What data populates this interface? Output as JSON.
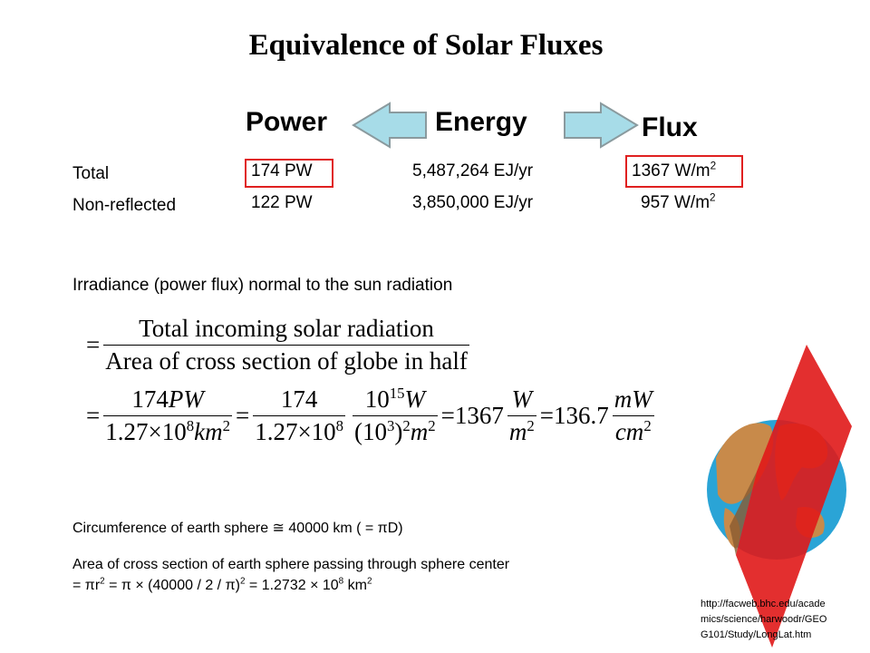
{
  "title": "Equivalence of Solar Fluxes",
  "headers": [
    "Power",
    "Energy",
    "Flux"
  ],
  "rows": [
    {
      "label": "Total",
      "cells": [
        [
          {
            "t": "174 PW"
          }
        ],
        [
          {
            "t": "5,487,264 EJ/yr"
          }
        ],
        [
          {
            "t": "1367 W/m"
          },
          {
            "sup": "2"
          }
        ]
      ]
    },
    {
      "label": "Non-reflected",
      "cells": [
        [
          {
            "t": "122 PW"
          }
        ],
        [
          {
            "t": "3,850,000 EJ/yr"
          }
        ],
        [
          {
            "t": "957 W/m"
          },
          {
            "sup": "2"
          }
        ]
      ]
    }
  ],
  "irradiance_caption": "Irradiance (power flux) normal to the sun radiation",
  "equations": [
    [
      {
        "t": "="
      },
      {
        "frac": [
          [
            {
              "t": "Total incoming solar radiation"
            }
          ],
          [
            {
              "t": "Area of cross section of globe in half"
            }
          ]
        ]
      }
    ],
    [
      {
        "t": "="
      },
      {
        "frac": [
          [
            {
              "t": "174"
            },
            {
              "i": "PW"
            }
          ],
          [
            {
              "t": "1.27×10"
            },
            {
              "sup": "8"
            },
            {
              "i": "km"
            },
            {
              "sup": "2"
            }
          ]
        ]
      },
      {
        "t": "="
      },
      {
        "frac": [
          [
            {
              "t": "174"
            }
          ],
          [
            {
              "t": "1.27×10"
            },
            {
              "sup": "8"
            }
          ]
        ]
      },
      {
        "frac": [
          [
            {
              "t": "10"
            },
            {
              "sup": "15"
            },
            {
              "i": "W"
            }
          ],
          [
            {
              "t": "(10"
            },
            {
              "sup": "3"
            },
            {
              "t": ")"
            },
            {
              "sup": "2"
            },
            {
              "i": "m"
            },
            {
              "sup": "2"
            }
          ]
        ]
      },
      {
        "t": "=1367"
      },
      {
        "frac": [
          [
            {
              "i": "W"
            }
          ],
          [
            {
              "i": "m"
            },
            {
              "sup": "2"
            }
          ]
        ]
      },
      {
        "t": "=136.7"
      },
      {
        "frac": [
          [
            {
              "i": "mW"
            }
          ],
          [
            {
              "i": "cm"
            },
            {
              "sup": "2"
            }
          ]
        ]
      }
    ]
  ],
  "circumference": [
    {
      "t": "Circumference of earth sphere ≅ 40000 km ( = πD)"
    }
  ],
  "area": [
    [
      {
        "t": "Area of cross section of earth sphere passing through sphere center"
      }
    ],
    [
      {
        "t": "= πr"
      },
      {
        "sup": "2"
      },
      {
        "t": " = π × (40000 / 2 / π)"
      },
      {
        "sup": "2"
      },
      {
        "t": " = 1.2732 × 10"
      },
      {
        "sup": "8"
      },
      {
        "t": " km"
      },
      {
        "sup": "2"
      }
    ]
  ],
  "source": [
    "http://facweb.bhc.edu/acade",
    "mics/science/harwoodr/GEO",
    "G101/Study/LongLat.htm"
  ]
}
